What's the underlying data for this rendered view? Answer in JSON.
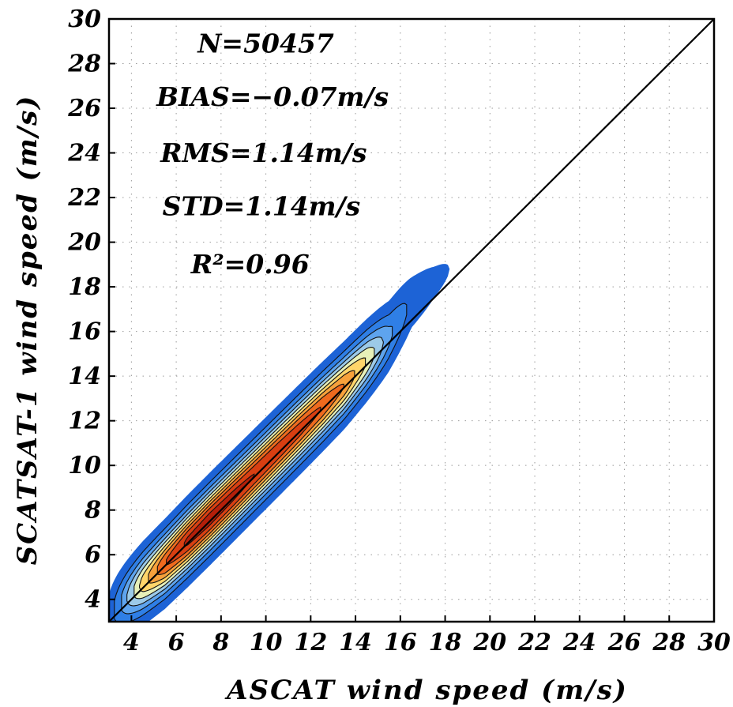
{
  "chart_data": {
    "type": "heatmap",
    "title": "",
    "xlabel": "ASCAT wind speed (m/s)",
    "ylabel": "SCATSAT-1 wind speed (m/s)",
    "xlim": [
      3,
      30
    ],
    "ylim": [
      3,
      30
    ],
    "x_ticks": [
      "4",
      "6",
      "8",
      "10",
      "12",
      "14",
      "16",
      "18",
      "20",
      "22",
      "24",
      "26",
      "28",
      "30"
    ],
    "y_ticks": [
      "4",
      "6",
      "8",
      "10",
      "12",
      "14",
      "16",
      "18",
      "20",
      "22",
      "24",
      "26",
      "28",
      "30"
    ],
    "grid": true,
    "reference_line": {
      "from": [
        3,
        3
      ],
      "to": [
        30,
        30
      ]
    },
    "annotations": [
      {
        "text": "N=50457",
        "x": 10.0,
        "y": 28.5
      },
      {
        "text": "BIAS=−0.07m/s",
        "x": 10.3,
        "y": 26.1
      },
      {
        "text": "RMS=1.14m/s",
        "x": 9.9,
        "y": 23.6
      },
      {
        "text": "STD=1.14m/s",
        "x": 9.8,
        "y": 21.2
      },
      {
        "text": "R²=0.96",
        "x": 9.3,
        "y": 18.6
      }
    ],
    "density_levels": [
      0.05,
      0.15,
      0.25,
      0.35,
      0.45,
      0.55,
      0.65,
      0.75,
      0.85,
      0.95
    ],
    "density_colors": [
      "#1d63d6",
      "#2f7fe6",
      "#5ea4ee",
      "#9ccae8",
      "#e7f0b8",
      "#ffd56a",
      "#f7a13b",
      "#ee6a1e",
      "#d83f12",
      "#b51f0a"
    ],
    "density_ridge": [
      {
        "x": 3.5,
        "y": 3.8,
        "peak": 0.25
      },
      {
        "x": 4.5,
        "y": 4.7,
        "peak": 0.6
      },
      {
        "x": 5.5,
        "y": 5.6,
        "peak": 0.85
      },
      {
        "x": 6.5,
        "y": 6.6,
        "peak": 0.97
      },
      {
        "x": 7.5,
        "y": 7.6,
        "peak": 1.0
      },
      {
        "x": 8.5,
        "y": 8.6,
        "peak": 0.98
      },
      {
        "x": 9.5,
        "y": 9.6,
        "peak": 0.95
      },
      {
        "x": 10.5,
        "y": 10.6,
        "peak": 0.93
      },
      {
        "x": 11.5,
        "y": 11.6,
        "peak": 0.9
      },
      {
        "x": 12.5,
        "y": 12.6,
        "peak": 0.85
      },
      {
        "x": 13.5,
        "y": 13.6,
        "peak": 0.75
      },
      {
        "x": 14.5,
        "y": 14.7,
        "peak": 0.55
      },
      {
        "x": 15.5,
        "y": 15.8,
        "peak": 0.28
      },
      {
        "x": 16.5,
        "y": 17.3,
        "peak": 0.12
      },
      {
        "x": 17.5,
        "y": 18.2,
        "peak": 0.07
      },
      {
        "x": 18.2,
        "y": 18.8,
        "peak": 0.05
      }
    ]
  }
}
